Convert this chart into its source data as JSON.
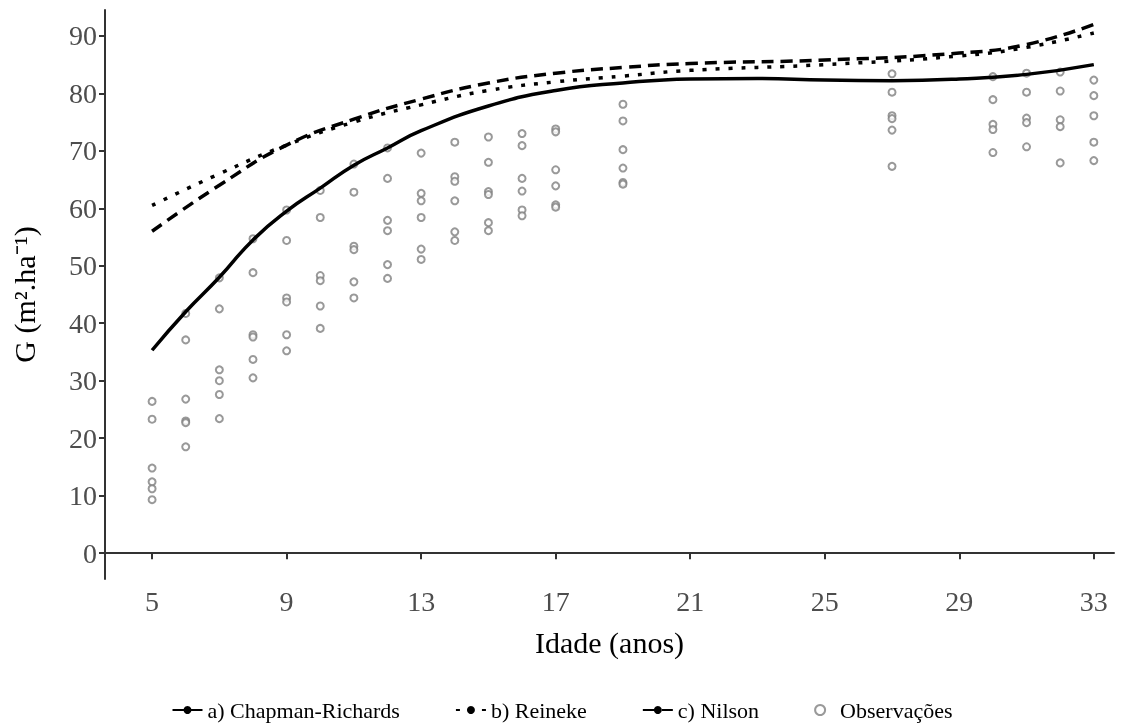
{
  "chart_data": {
    "type": "line",
    "xlabel": "Idade (anos)",
    "ylabel": "G (m².ha⁻¹)",
    "xlim": [
      3.6,
      33.6
    ],
    "xticks": [
      5,
      9,
      13,
      17,
      21,
      25,
      29,
      33
    ],
    "ylim": [
      -4.5,
      94.5
    ],
    "yticks": [
      0,
      10,
      20,
      30,
      40,
      50,
      60,
      70,
      80,
      90
    ],
    "grid": false,
    "legend": "bottom",
    "series": [
      {
        "name": "a) Chapman-Richards",
        "color": "#000000",
        "line_style": "solid",
        "marker": "none",
        "x": [
          5,
          6,
          7,
          8,
          9,
          10,
          11,
          12,
          13,
          15,
          17,
          19,
          21,
          23,
          25,
          27,
          29,
          31,
          33
        ],
        "values": [
          35.3,
          42,
          48,
          54.5,
          59.5,
          63.5,
          67.5,
          70.5,
          73.5,
          77.8,
          80.5,
          81.8,
          82.5,
          82.6,
          82.3,
          82.2,
          82.5,
          83.3,
          85
        ]
      },
      {
        "name": "b) Reineke",
        "color": "#000000",
        "line_style": "dotted",
        "marker": "none",
        "x": [
          5,
          7,
          9,
          11,
          13,
          15,
          17,
          19,
          21,
          25,
          29,
          31,
          33
        ],
        "values": [
          60.5,
          66,
          71,
          75,
          78,
          80.5,
          82,
          83,
          84,
          85,
          86.5,
          88,
          90.5
        ]
      },
      {
        "name": "c) Nilson",
        "color": "#000000",
        "line_style": "dashed",
        "marker": "none",
        "x": [
          5,
          7,
          9,
          11,
          13,
          15,
          17,
          19,
          21,
          25,
          29,
          31,
          33
        ],
        "values": [
          56,
          64,
          71,
          75.5,
          79,
          81.8,
          83.5,
          84.5,
          85.2,
          85.8,
          87,
          88.5,
          92
        ]
      },
      {
        "name": "Observações",
        "type": "scatter",
        "color": "#808080",
        "marker": "circle",
        "x": [
          5,
          5,
          5,
          5,
          5,
          5,
          6,
          6,
          6,
          6,
          6,
          6,
          7,
          7,
          7,
          7,
          7,
          7,
          8,
          8,
          8,
          8,
          8,
          8,
          9,
          9,
          9,
          9,
          9,
          9,
          10,
          10,
          10,
          10,
          10,
          10,
          11,
          11,
          11,
          11,
          11,
          11,
          12,
          12,
          12,
          12,
          12,
          12,
          13,
          13,
          13,
          13,
          13,
          13,
          14,
          14,
          14,
          14,
          14,
          14,
          15,
          15,
          15,
          15,
          15,
          15,
          16,
          16,
          16,
          16,
          16,
          16,
          17,
          17,
          17,
          17,
          17,
          17,
          19,
          19,
          19,
          19,
          19,
          19,
          27,
          27,
          27,
          27,
          27,
          27,
          30,
          30,
          30,
          30,
          30,
          31,
          31,
          31,
          31,
          31,
          32,
          32,
          32,
          32,
          32,
          33,
          33,
          33,
          33,
          33
        ],
        "values": [
          26.4,
          23.3,
          14.8,
          12.4,
          11.2,
          9.3,
          41.7,
          37.1,
          26.8,
          23.0,
          22.7,
          18.5,
          47.9,
          42.5,
          31.9,
          30.0,
          27.6,
          23.4,
          54.7,
          48.8,
          38.0,
          37.6,
          33.7,
          30.5,
          59.7,
          54.4,
          44.4,
          43.7,
          38.0,
          35.2,
          63.1,
          58.4,
          48.3,
          47.4,
          43.0,
          39.1,
          67.7,
          62.8,
          53.4,
          52.8,
          47.2,
          44.4,
          70.5,
          65.2,
          57.9,
          56.1,
          50.2,
          47.8,
          69.6,
          62.6,
          61.3,
          58.4,
          52.9,
          51.1,
          71.5,
          65.5,
          64.7,
          61.3,
          55.9,
          54.4,
          72.4,
          68.0,
          62.9,
          62.4,
          57.5,
          56.1,
          73.0,
          70.9,
          65.2,
          63.0,
          59.7,
          58.7,
          73.8,
          73.3,
          66.7,
          63.9,
          60.6,
          60.2,
          78.1,
          75.2,
          70.2,
          67.0,
          64.5,
          64.2,
          83.4,
          80.2,
          76.1,
          75.6,
          73.6,
          67.3,
          82.9,
          78.9,
          74.6,
          73.7,
          69.7,
          83.5,
          80.2,
          75.7,
          74.9,
          70.7,
          83.7,
          80.4,
          75.4,
          74.2,
          67.9,
          82.3,
          79.6,
          76.1,
          71.5,
          68.3
        ]
      }
    ]
  }
}
